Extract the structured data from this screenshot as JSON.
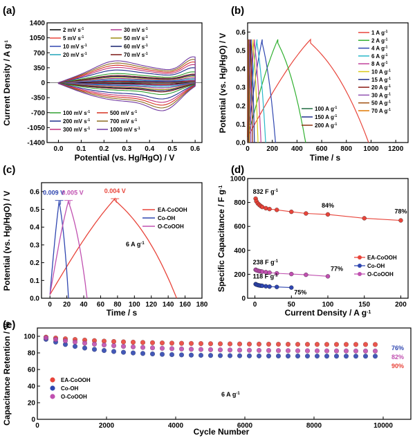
{
  "panels": {
    "a": "(a)",
    "b": "(b)",
    "c": "(c)",
    "d": "(d)",
    "e": "(e)"
  },
  "chart_data": [
    {
      "id": "a",
      "type": "line",
      "title": "",
      "xlabel": "Potential (vs. Hg/HgO) / V",
      "ylabel": "Current Density / A g",
      "ylabel_sup": "-1",
      "xlim": [
        -0.05,
        0.63
      ],
      "ylim": [
        -1400,
        1400
      ],
      "xticks": [
        "0.0",
        "0.1",
        "0.2",
        "0.3",
        "0.4",
        "0.5",
        "0.6"
      ],
      "yticks": [
        "-1400",
        "-1050",
        "-700",
        "-350",
        "0",
        "350",
        "700",
        "1050",
        "1400"
      ],
      "series": [
        {
          "name": "2 mV s",
          "sup": "-1",
          "color": "#000000",
          "scale": 0.04
        },
        {
          "name": "5 mV s",
          "sup": "-1",
          "color": "#e8443a",
          "scale": 0.07
        },
        {
          "name": "10 mV s",
          "sup": "-1",
          "color": "#2f46b0",
          "scale": 0.1
        },
        {
          "name": "20 mV s",
          "sup": "-1",
          "color": "#20a3b8",
          "scale": 0.15
        },
        {
          "name": "30 mV s",
          "sup": "-1",
          "color": "#b0378f",
          "scale": 0.19
        },
        {
          "name": "50 mV s",
          "sup": "-1",
          "color": "#9a8a10",
          "scale": 0.25
        },
        {
          "name": "60 mV s",
          "sup": "-1",
          "color": "#16206e",
          "scale": 0.29
        },
        {
          "name": "70 mV s",
          "sup": "-1",
          "color": "#7a1712",
          "scale": 0.33
        },
        {
          "name": "100 mV s",
          "sup": "-1",
          "color": "#30a030",
          "scale": 0.42
        },
        {
          "name": "200 mV s",
          "sup": "-1",
          "color": "#1e2d8c",
          "scale": 0.58
        },
        {
          "name": "300 mV s",
          "sup": "-1",
          "color": "#c0317a",
          "scale": 0.7
        },
        {
          "name": "500 mV s",
          "sup": "-1",
          "color": "#d63020",
          "scale": 0.8
        },
        {
          "name": "700 mV s",
          "sup": "-1",
          "color": "#8a6a20",
          "scale": 0.9
        },
        {
          "name": "1000 mV s",
          "sup": "-1",
          "color": "#7038a0",
          "scale": 1.0
        }
      ]
    },
    {
      "id": "b",
      "type": "line",
      "xlabel": "Time / s",
      "ylabel": "Potential (vs. Hg/HgO) / V",
      "xlim": [
        0,
        1300
      ],
      "ylim": [
        0,
        0.65
      ],
      "xticks": [
        "0",
        "200",
        "400",
        "600",
        "800",
        "1000",
        "1200"
      ],
      "yticks": [
        "0.0",
        "0.1",
        "0.2",
        "0.3",
        "0.4",
        "0.5",
        "0.6"
      ],
      "vmax": 0.56,
      "series": [
        {
          "name": "1 A g",
          "sup": "-1",
          "color": "#e8443a",
          "t_peak": 510,
          "t_end": 980
        },
        {
          "name": "2 A g",
          "sup": "-1",
          "color": "#30b030",
          "t_peak": 245,
          "t_end": 470
        },
        {
          "name": "4 A g",
          "sup": "-1",
          "color": "#2f46b0",
          "t_peak": 118,
          "t_end": 226
        },
        {
          "name": "6 A g",
          "sup": "-1",
          "color": "#28b8c8",
          "t_peak": 76,
          "t_end": 146
        },
        {
          "name": "8 A g",
          "sup": "-1",
          "color": "#c0409a",
          "t_peak": 56,
          "t_end": 108
        },
        {
          "name": "10 A g",
          "sup": "-1",
          "color": "#d8c818",
          "t_peak": 44,
          "t_end": 84
        },
        {
          "name": "15 A g",
          "sup": "-1",
          "color": "#1e2d8c",
          "t_peak": 29,
          "t_end": 55
        },
        {
          "name": "20 A g",
          "sup": "-1",
          "color": "#8a1a12",
          "t_peak": 21,
          "t_end": 40
        },
        {
          "name": "30 A g",
          "sup": "-1",
          "color": "#9050b0",
          "t_peak": 13,
          "t_end": 26
        },
        {
          "name": "50 A g",
          "sup": "-1",
          "color": "#a05010",
          "t_peak": 8,
          "t_end": 15
        },
        {
          "name": "70 A g",
          "sup": "-1",
          "color": "#e07800",
          "t_peak": 5.5,
          "t_end": 10.5
        },
        {
          "name": "100 A g",
          "sup": "-1",
          "color": "#1e6a40",
          "t_peak": 3.8,
          "t_end": 7.2
        },
        {
          "name": "150 A g",
          "sup": "-1",
          "color": "#1e2d8c",
          "t_peak": 2.5,
          "t_end": 4.8
        },
        {
          "name": "200 A g",
          "sup": "-1",
          "color": "#8a3010",
          "t_peak": 1.9,
          "t_end": 3.6
        }
      ]
    },
    {
      "id": "c",
      "type": "line",
      "xlabel": "Time / s",
      "ylabel": "Potential (vs. Hg/HgO) / V",
      "xlim": [
        -10,
        180
      ],
      "ylim": [
        0,
        0.65
      ],
      "xticks": [
        "0",
        "20",
        "40",
        "60",
        "80",
        "100",
        "120",
        "140",
        "160",
        "180"
      ],
      "yticks": [
        "0.0",
        "0.1",
        "0.2",
        "0.3",
        "0.4",
        "0.5",
        "0.6"
      ],
      "annotation": "6 A g",
      "annotation_sup": "-1",
      "series": [
        {
          "name": "EA-CoOOH",
          "color": "#e8443a",
          "t_peak": 77,
          "t_end": 150,
          "vmax": 0.56,
          "ir": "0.004 V"
        },
        {
          "name": "Co-OH",
          "color": "#2f46b0",
          "t_peak": 11,
          "t_end": 22,
          "vmax": 0.55,
          "ir": "0.009 V"
        },
        {
          "name": "O-CoOOH",
          "color": "#c050b0",
          "t_peak": 22,
          "t_end": 44,
          "vmax": 0.55,
          "ir": "0.005 V"
        }
      ]
    },
    {
      "id": "d",
      "type": "scatter",
      "xlabel": "Current Density / A g",
      "xlabel_sup": "-1",
      "ylabel": "Specific Capacitance / F g",
      "ylabel_sup": "-1",
      "xlim": [
        -10,
        210
      ],
      "ylim": [
        0,
        1000
      ],
      "xticks": [
        "0",
        "50",
        "100",
        "150",
        "200"
      ],
      "yticks": [
        "0",
        "200",
        "400",
        "600",
        "800",
        "1000"
      ],
      "series": [
        {
          "name": "EA-CoOOH",
          "color": "#e8443a",
          "x": [
            1,
            2,
            4,
            6,
            8,
            10,
            15,
            20,
            30,
            50,
            70,
            100,
            150,
            200
          ],
          "y": [
            832,
            810,
            792,
            780,
            770,
            762,
            752,
            745,
            738,
            722,
            708,
            700,
            668,
            650
          ]
        },
        {
          "name": "Co-OH",
          "color": "#2f46b0",
          "x": [
            1,
            2,
            4,
            6,
            8,
            10,
            15,
            20,
            30,
            50
          ],
          "y": [
            118,
            114,
            110,
            107,
            105,
            104,
            100,
            97,
            94,
            89
          ]
        },
        {
          "name": "O-CoOOH",
          "color": "#c050b0",
          "x": [
            1,
            2,
            4,
            6,
            8,
            10,
            15,
            20,
            30,
            50,
            70,
            100
          ],
          "y": [
            238,
            234,
            230,
            226,
            224,
            222,
            218,
            214,
            208,
            202,
            196,
            183
          ]
        }
      ],
      "labels": [
        {
          "text": "832 F g",
          "sup": "-1",
          "series": "EA-CoOOH"
        },
        {
          "text": "84%",
          "series": "EA-CoOOH"
        },
        {
          "text": "78%",
          "series": "EA-CoOOH"
        },
        {
          "text": "238 F g",
          "sup": "-1",
          "series": "O-CoOOH"
        },
        {
          "text": "77%",
          "series": "O-CoOOH"
        },
        {
          "text": "118 F g",
          "sup": "-1",
          "series": "Co-OH"
        },
        {
          "text": "75%",
          "series": "Co-OH"
        }
      ]
    },
    {
      "id": "e",
      "type": "scatter",
      "xlabel": "Cycle Number",
      "ylabel": "Capacitance Retention / %",
      "xlim": [
        0,
        10800
      ],
      "ylim": [
        0,
        110
      ],
      "xticks": [
        "0",
        "2000",
        "4000",
        "6000",
        "8000",
        "10000"
      ],
      "yticks": [
        "0",
        "20",
        "40",
        "60",
        "80",
        "100"
      ],
      "annotation": "6 A g",
      "annotation_sup": "-1",
      "series": [
        {
          "name": "EA-CoOOH",
          "color": "#e8443a",
          "start": 100,
          "end": 90,
          "label": "90%"
        },
        {
          "name": "Co-OH",
          "color": "#2f46b0",
          "start": 100,
          "end": 76,
          "label": "76%"
        },
        {
          "name": "O-CoOOH",
          "color": "#c050b0",
          "start": 100,
          "end": 82,
          "label": "82%"
        }
      ]
    }
  ]
}
